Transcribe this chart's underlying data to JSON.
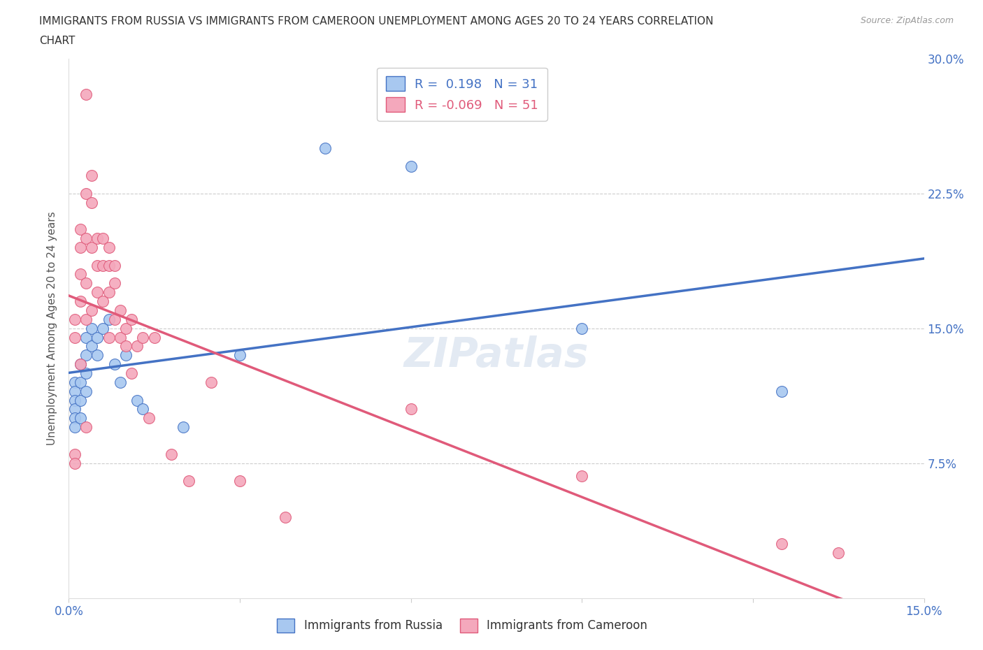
{
  "title_line1": "IMMIGRANTS FROM RUSSIA VS IMMIGRANTS FROM CAMEROON UNEMPLOYMENT AMONG AGES 20 TO 24 YEARS CORRELATION",
  "title_line2": "CHART",
  "source": "Source: ZipAtlas.com",
  "ylabel": "Unemployment Among Ages 20 to 24 years",
  "xlabel_russia": "Immigrants from Russia",
  "xlabel_cameroon": "Immigrants from Cameroon",
  "xlim": [
    0.0,
    0.15
  ],
  "ylim": [
    0.0,
    0.3
  ],
  "yticks": [
    0.0,
    0.075,
    0.15,
    0.225,
    0.3
  ],
  "ytick_labels": [
    "",
    "7.5%",
    "15.0%",
    "22.5%",
    "30.0%"
  ],
  "xticks": [
    0.0,
    0.03,
    0.06,
    0.09,
    0.12,
    0.15
  ],
  "xtick_labels": [
    "0.0%",
    "",
    "",
    "",
    "",
    "15.0%"
  ],
  "russia_color": "#A8C8F0",
  "cameroon_color": "#F4A8BC",
  "russia_line_color": "#4472C4",
  "cameroon_line_color": "#E05A7A",
  "R_russia": 0.198,
  "N_russia": 31,
  "R_cameroon": -0.069,
  "N_cameroon": 51,
  "russia_x": [
    0.001,
    0.001,
    0.001,
    0.001,
    0.001,
    0.001,
    0.002,
    0.002,
    0.002,
    0.002,
    0.003,
    0.003,
    0.003,
    0.003,
    0.004,
    0.004,
    0.005,
    0.005,
    0.006,
    0.007,
    0.008,
    0.009,
    0.01,
    0.012,
    0.013,
    0.02,
    0.03,
    0.045,
    0.06,
    0.09,
    0.125
  ],
  "russia_y": [
    0.12,
    0.115,
    0.11,
    0.105,
    0.1,
    0.095,
    0.13,
    0.12,
    0.11,
    0.1,
    0.145,
    0.135,
    0.125,
    0.115,
    0.15,
    0.14,
    0.145,
    0.135,
    0.15,
    0.155,
    0.13,
    0.12,
    0.135,
    0.11,
    0.105,
    0.095,
    0.135,
    0.25,
    0.24,
    0.15,
    0.115
  ],
  "cameroon_x": [
    0.001,
    0.001,
    0.001,
    0.002,
    0.002,
    0.002,
    0.002,
    0.003,
    0.003,
    0.003,
    0.003,
    0.003,
    0.004,
    0.004,
    0.004,
    0.005,
    0.005,
    0.005,
    0.006,
    0.006,
    0.006,
    0.007,
    0.007,
    0.007,
    0.007,
    0.008,
    0.008,
    0.008,
    0.009,
    0.009,
    0.01,
    0.01,
    0.011,
    0.011,
    0.012,
    0.013,
    0.014,
    0.015,
    0.018,
    0.021,
    0.025,
    0.03,
    0.038,
    0.06,
    0.09,
    0.125,
    0.135,
    0.001,
    0.002,
    0.003,
    0.004
  ],
  "cameroon_y": [
    0.155,
    0.145,
    0.08,
    0.205,
    0.195,
    0.18,
    0.165,
    0.28,
    0.225,
    0.2,
    0.175,
    0.095,
    0.235,
    0.22,
    0.195,
    0.2,
    0.185,
    0.17,
    0.2,
    0.185,
    0.165,
    0.195,
    0.185,
    0.17,
    0.145,
    0.185,
    0.175,
    0.155,
    0.16,
    0.145,
    0.15,
    0.14,
    0.155,
    0.125,
    0.14,
    0.145,
    0.1,
    0.145,
    0.08,
    0.065,
    0.12,
    0.065,
    0.045,
    0.105,
    0.068,
    0.03,
    0.025,
    0.075,
    0.13,
    0.155,
    0.16
  ]
}
